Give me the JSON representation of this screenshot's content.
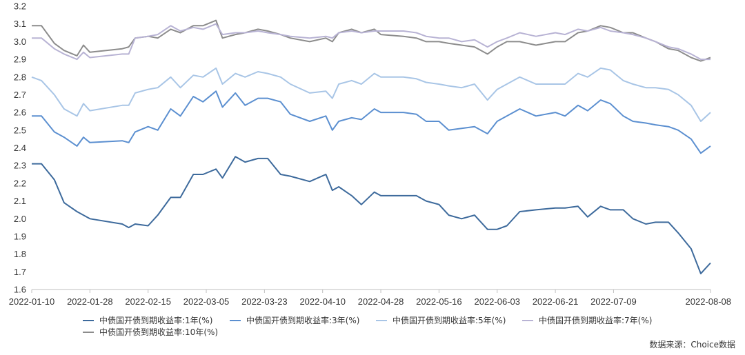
{
  "chart_data": {
    "type": "line",
    "title": "",
    "xlabel": "",
    "ylabel": "",
    "ylim": [
      1.6,
      3.2
    ],
    "y_ticks": [
      "1.6",
      "1.7",
      "1.8",
      "1.9",
      "2.0",
      "2.1",
      "2.2",
      "2.3",
      "2.4",
      "2.5",
      "2.6",
      "2.7",
      "2.8",
      "2.9",
      "3.0",
      "3.1",
      "3.2"
    ],
    "x_tick_labels": [
      "2022-01-10",
      "2022-01-28",
      "2022-02-15",
      "2022-03-05",
      "2022-03-23",
      "2022-04-10",
      "2022-04-28",
      "2022-05-16",
      "2022-06-03",
      "2022-06-21",
      "2022-07-09",
      "2022-08-08"
    ],
    "x_tick_dates": [
      "2022-01-10",
      "2022-01-28",
      "2022-02-15",
      "2022-03-05",
      "2022-03-23",
      "2022-04-10",
      "2022-04-28",
      "2022-05-16",
      "2022-06-03",
      "2022-06-21",
      "2022-07-09",
      "2022-08-08"
    ],
    "x_range": [
      "2022-01-10",
      "2022-08-08"
    ],
    "grid": false,
    "legend_position": "bottom",
    "series": [
      {
        "name": "中债国开债到期收益率:1年(%)",
        "color": "#3d6a9c",
        "x": [
          "2022-01-10",
          "2022-01-13",
          "2022-01-17",
          "2022-01-20",
          "2022-01-24",
          "2022-01-26",
          "2022-01-28",
          "2022-02-07",
          "2022-02-09",
          "2022-02-11",
          "2022-02-15",
          "2022-02-18",
          "2022-02-22",
          "2022-02-25",
          "2022-03-01",
          "2022-03-04",
          "2022-03-08",
          "2022-03-10",
          "2022-03-14",
          "2022-03-17",
          "2022-03-21",
          "2022-03-24",
          "2022-03-28",
          "2022-03-31",
          "2022-04-06",
          "2022-04-11",
          "2022-04-13",
          "2022-04-15",
          "2022-04-19",
          "2022-04-22",
          "2022-04-26",
          "2022-04-28",
          "2022-05-05",
          "2022-05-09",
          "2022-05-12",
          "2022-05-16",
          "2022-05-19",
          "2022-05-23",
          "2022-05-27",
          "2022-05-31",
          "2022-06-03",
          "2022-06-06",
          "2022-06-10",
          "2022-06-15",
          "2022-06-21",
          "2022-06-24",
          "2022-06-28",
          "2022-07-01",
          "2022-07-05",
          "2022-07-08",
          "2022-07-12",
          "2022-07-15",
          "2022-07-19",
          "2022-07-22",
          "2022-07-26",
          "2022-07-29",
          "2022-08-02",
          "2022-08-05",
          "2022-08-08"
        ],
        "y": [
          2.31,
          2.31,
          2.22,
          2.09,
          2.04,
          2.02,
          2.0,
          1.97,
          1.95,
          1.97,
          1.96,
          2.02,
          2.12,
          2.12,
          2.25,
          2.25,
          2.28,
          2.23,
          2.35,
          2.32,
          2.34,
          2.34,
          2.25,
          2.24,
          2.21,
          2.25,
          2.16,
          2.18,
          2.13,
          2.08,
          2.15,
          2.13,
          2.13,
          2.13,
          2.1,
          2.08,
          2.02,
          2.0,
          2.02,
          1.94,
          1.94,
          1.96,
          2.04,
          2.05,
          2.06,
          2.06,
          2.07,
          2.01,
          2.07,
          2.05,
          2.05,
          2.0,
          1.97,
          1.98,
          1.98,
          1.92,
          1.83,
          1.69,
          1.75
        ]
      },
      {
        "name": "中债国开债到期收益率:3年(%)",
        "color": "#5b8fd0",
        "x": [
          "2022-01-10",
          "2022-01-13",
          "2022-01-17",
          "2022-01-20",
          "2022-01-24",
          "2022-01-26",
          "2022-01-28",
          "2022-02-07",
          "2022-02-09",
          "2022-02-11",
          "2022-02-15",
          "2022-02-18",
          "2022-02-22",
          "2022-02-25",
          "2022-03-01",
          "2022-03-04",
          "2022-03-08",
          "2022-03-10",
          "2022-03-14",
          "2022-03-17",
          "2022-03-21",
          "2022-03-24",
          "2022-03-28",
          "2022-03-31",
          "2022-04-06",
          "2022-04-11",
          "2022-04-13",
          "2022-04-15",
          "2022-04-19",
          "2022-04-22",
          "2022-04-26",
          "2022-04-28",
          "2022-05-05",
          "2022-05-09",
          "2022-05-12",
          "2022-05-16",
          "2022-05-19",
          "2022-05-23",
          "2022-05-27",
          "2022-05-31",
          "2022-06-03",
          "2022-06-06",
          "2022-06-10",
          "2022-06-15",
          "2022-06-21",
          "2022-06-24",
          "2022-06-28",
          "2022-07-01",
          "2022-07-05",
          "2022-07-08",
          "2022-07-12",
          "2022-07-15",
          "2022-07-19",
          "2022-07-22",
          "2022-07-26",
          "2022-07-29",
          "2022-08-02",
          "2022-08-05",
          "2022-08-08"
        ],
        "y": [
          2.58,
          2.58,
          2.49,
          2.46,
          2.41,
          2.46,
          2.43,
          2.44,
          2.43,
          2.49,
          2.52,
          2.5,
          2.62,
          2.58,
          2.69,
          2.66,
          2.72,
          2.63,
          2.71,
          2.64,
          2.68,
          2.68,
          2.66,
          2.59,
          2.55,
          2.58,
          2.5,
          2.55,
          2.57,
          2.56,
          2.62,
          2.6,
          2.6,
          2.59,
          2.55,
          2.55,
          2.5,
          2.51,
          2.52,
          2.48,
          2.55,
          2.58,
          2.62,
          2.58,
          2.6,
          2.58,
          2.64,
          2.61,
          2.67,
          2.65,
          2.58,
          2.55,
          2.54,
          2.53,
          2.52,
          2.5,
          2.45,
          2.37,
          2.41
        ]
      },
      {
        "name": "中债国开债到期收益率:5年(%)",
        "color": "#a8c5e6",
        "x": [
          "2022-01-10",
          "2022-01-13",
          "2022-01-17",
          "2022-01-20",
          "2022-01-24",
          "2022-01-26",
          "2022-01-28",
          "2022-02-07",
          "2022-02-09",
          "2022-02-11",
          "2022-02-15",
          "2022-02-18",
          "2022-02-22",
          "2022-02-25",
          "2022-03-01",
          "2022-03-04",
          "2022-03-08",
          "2022-03-10",
          "2022-03-14",
          "2022-03-17",
          "2022-03-21",
          "2022-03-24",
          "2022-03-28",
          "2022-03-31",
          "2022-04-06",
          "2022-04-11",
          "2022-04-13",
          "2022-04-15",
          "2022-04-19",
          "2022-04-22",
          "2022-04-26",
          "2022-04-28",
          "2022-05-05",
          "2022-05-09",
          "2022-05-12",
          "2022-05-16",
          "2022-05-19",
          "2022-05-23",
          "2022-05-27",
          "2022-05-31",
          "2022-06-03",
          "2022-06-06",
          "2022-06-10",
          "2022-06-15",
          "2022-06-21",
          "2022-06-24",
          "2022-06-28",
          "2022-07-01",
          "2022-07-05",
          "2022-07-08",
          "2022-07-12",
          "2022-07-15",
          "2022-07-19",
          "2022-07-22",
          "2022-07-26",
          "2022-07-29",
          "2022-08-02",
          "2022-08-05",
          "2022-08-08"
        ],
        "y": [
          2.8,
          2.78,
          2.7,
          2.62,
          2.58,
          2.65,
          2.61,
          2.64,
          2.64,
          2.71,
          2.73,
          2.74,
          2.8,
          2.74,
          2.81,
          2.8,
          2.85,
          2.76,
          2.82,
          2.8,
          2.83,
          2.82,
          2.8,
          2.76,
          2.71,
          2.72,
          2.68,
          2.76,
          2.78,
          2.76,
          2.82,
          2.8,
          2.8,
          2.79,
          2.77,
          2.76,
          2.75,
          2.74,
          2.76,
          2.67,
          2.73,
          2.76,
          2.8,
          2.76,
          2.76,
          2.76,
          2.82,
          2.8,
          2.85,
          2.84,
          2.78,
          2.76,
          2.74,
          2.74,
          2.73,
          2.7,
          2.64,
          2.55,
          2.6
        ]
      },
      {
        "name": "中债国开债到期收益率:7年(%)",
        "color": "#b8b3d4",
        "x": [
          "2022-01-10",
          "2022-01-13",
          "2022-01-17",
          "2022-01-20",
          "2022-01-24",
          "2022-01-26",
          "2022-01-28",
          "2022-02-07",
          "2022-02-09",
          "2022-02-11",
          "2022-02-15",
          "2022-02-18",
          "2022-02-22",
          "2022-02-25",
          "2022-03-01",
          "2022-03-04",
          "2022-03-08",
          "2022-03-10",
          "2022-03-14",
          "2022-03-17",
          "2022-03-21",
          "2022-03-24",
          "2022-03-28",
          "2022-03-31",
          "2022-04-06",
          "2022-04-11",
          "2022-04-13",
          "2022-04-15",
          "2022-04-19",
          "2022-04-22",
          "2022-04-26",
          "2022-04-28",
          "2022-05-05",
          "2022-05-09",
          "2022-05-12",
          "2022-05-16",
          "2022-05-19",
          "2022-05-23",
          "2022-05-27",
          "2022-05-31",
          "2022-06-03",
          "2022-06-06",
          "2022-06-10",
          "2022-06-15",
          "2022-06-21",
          "2022-06-24",
          "2022-06-28",
          "2022-07-01",
          "2022-07-05",
          "2022-07-08",
          "2022-07-12",
          "2022-07-15",
          "2022-07-19",
          "2022-07-22",
          "2022-07-26",
          "2022-07-29",
          "2022-08-02",
          "2022-08-05",
          "2022-08-08"
        ],
        "y": [
          3.02,
          3.02,
          2.96,
          2.93,
          2.9,
          2.94,
          2.91,
          2.93,
          2.93,
          3.02,
          3.03,
          3.04,
          3.09,
          3.06,
          3.08,
          3.07,
          3.1,
          3.04,
          3.05,
          3.05,
          3.06,
          3.05,
          3.04,
          3.03,
          3.02,
          3.03,
          3.02,
          3.05,
          3.06,
          3.05,
          3.06,
          3.06,
          3.06,
          3.05,
          3.03,
          3.02,
          3.02,
          3.0,
          3.01,
          2.97,
          3.0,
          3.02,
          3.05,
          3.03,
          3.05,
          3.04,
          3.07,
          3.06,
          3.08,
          3.06,
          3.05,
          3.04,
          3.02,
          3.0,
          2.97,
          2.96,
          2.93,
          2.9,
          2.9
        ]
      },
      {
        "name": "中债国开债到期收益率:10年(%)",
        "color": "#8c8c8c",
        "x": [
          "2022-01-10",
          "2022-01-13",
          "2022-01-17",
          "2022-01-20",
          "2022-01-24",
          "2022-01-26",
          "2022-01-28",
          "2022-02-07",
          "2022-02-09",
          "2022-02-11",
          "2022-02-15",
          "2022-02-18",
          "2022-02-22",
          "2022-02-25",
          "2022-03-01",
          "2022-03-04",
          "2022-03-08",
          "2022-03-10",
          "2022-03-14",
          "2022-03-17",
          "2022-03-21",
          "2022-03-24",
          "2022-03-28",
          "2022-03-31",
          "2022-04-06",
          "2022-04-11",
          "2022-04-13",
          "2022-04-15",
          "2022-04-19",
          "2022-04-22",
          "2022-04-26",
          "2022-04-28",
          "2022-05-05",
          "2022-05-09",
          "2022-05-12",
          "2022-05-16",
          "2022-05-19",
          "2022-05-23",
          "2022-05-27",
          "2022-05-31",
          "2022-06-03",
          "2022-06-06",
          "2022-06-10",
          "2022-06-15",
          "2022-06-21",
          "2022-06-24",
          "2022-06-28",
          "2022-07-01",
          "2022-07-05",
          "2022-07-08",
          "2022-07-12",
          "2022-07-15",
          "2022-07-19",
          "2022-07-22",
          "2022-07-26",
          "2022-07-29",
          "2022-08-02",
          "2022-08-05",
          "2022-08-08"
        ],
        "y": [
          3.09,
          3.09,
          2.99,
          2.95,
          2.92,
          2.98,
          2.94,
          2.96,
          2.97,
          3.02,
          3.03,
          3.02,
          3.07,
          3.05,
          3.09,
          3.09,
          3.12,
          3.02,
          3.04,
          3.05,
          3.07,
          3.06,
          3.04,
          3.02,
          3.0,
          3.02,
          3.0,
          3.05,
          3.07,
          3.05,
          3.07,
          3.04,
          3.03,
          3.02,
          3.0,
          3.0,
          2.99,
          2.98,
          2.97,
          2.93,
          2.97,
          3.0,
          3.0,
          2.98,
          3.0,
          3.0,
          3.05,
          3.06,
          3.09,
          3.08,
          3.05,
          3.05,
          3.02,
          3.0,
          2.96,
          2.95,
          2.91,
          2.89,
          2.91
        ]
      }
    ],
    "source_note": "数据来源：Choice数据"
  }
}
